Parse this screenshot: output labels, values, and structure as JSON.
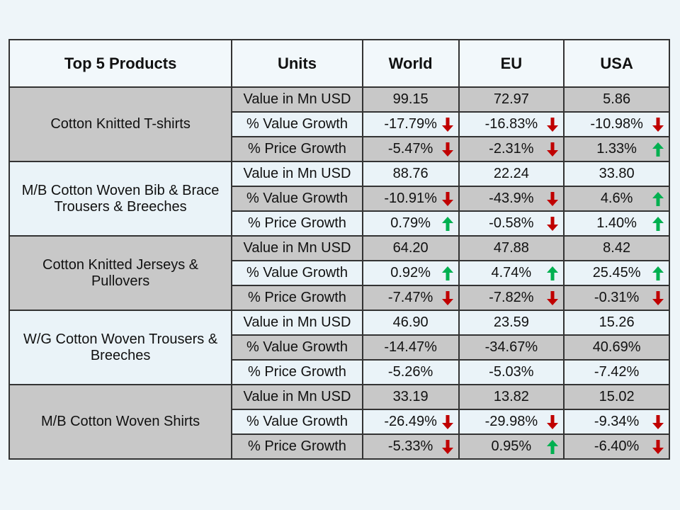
{
  "table": {
    "header": [
      "Top 5 Products",
      "Units",
      "World",
      "EU",
      "USA"
    ],
    "groups": [
      {
        "product": "Cotton Knitted T-shirts",
        "rows": [
          [
            "Value in Mn USD",
            "99.15",
            "72.97",
            "5.86"
          ],
          [
            "% Value Growth",
            "-17.79%",
            "-16.83%",
            "-10.98%"
          ],
          [
            "% Price Growth",
            "-5.47%",
            "-2.31%",
            "1.33%"
          ]
        ]
      },
      {
        "product": "M/B Cotton Woven Bib & Brace Trousers & Breeches",
        "rows": [
          [
            "Value in Mn USD",
            "88.76",
            "22.24",
            "33.80"
          ],
          [
            "% Value Growth",
            "-10.91%",
            "-43.9%",
            "4.6%"
          ],
          [
            "% Price Growth",
            "0.79%",
            "-0.58%",
            "1.40%"
          ]
        ]
      },
      {
        "product": "Cotton Knitted Jerseys & Pullovers",
        "rows": [
          [
            "Value in Mn USD",
            "64.20",
            "47.88",
            "8.42"
          ],
          [
            "% Value Growth",
            "0.92%",
            "4.74%",
            "25.45%"
          ],
          [
            "% Price Growth",
            "-7.47%",
            "-7.82%",
            "-0.31%"
          ]
        ]
      },
      {
        "product": "W/G Cotton Woven Trousers & Breeches",
        "rows": [
          [
            "Value in Mn USD",
            "46.90",
            "23.59",
            "15.26"
          ],
          [
            "% Value Growth",
            "-14.47%",
            "-34.67%",
            "40.69%"
          ],
          [
            "% Price Growth",
            "-5.26%",
            "-5.03%",
            "-7.42%"
          ]
        ]
      },
      {
        "product": "M/B Cotton Woven Shirts",
        "rows": [
          [
            "Value in Mn USD",
            "33.19",
            "13.82",
            "15.02"
          ],
          [
            "% Value Growth",
            "-26.49%",
            "-29.98%",
            "-9.34%"
          ],
          [
            "% Price Growth",
            "-5.33%",
            "0.95%",
            "-6.40%"
          ]
        ]
      }
    ]
  }
}
